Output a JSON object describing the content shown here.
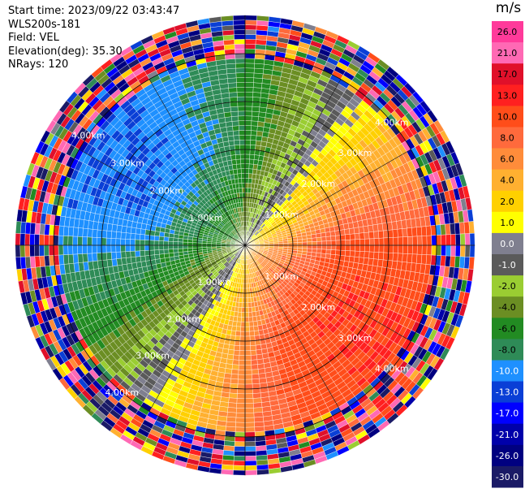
{
  "header": {
    "start_time": "Start time: 2023/09/22 03:43:47",
    "instrument": "WLS200s-181",
    "field": "Field: VEL",
    "elevation": "Elevation(deg): 35.30",
    "nrays": "NRays: 120"
  },
  "colorbar": {
    "unit": "m/s",
    "ticks": [
      "26.0",
      "21.0",
      "17.0",
      "13.0",
      "10.0",
      "8.0",
      "6.0",
      "4.0",
      "2.0",
      "1.0",
      "0.0",
      "-1.0",
      "-2.0",
      "-4.0",
      "-6.0",
      "-8.0",
      "-10.0",
      "-13.0",
      "-17.0",
      "-21.0",
      "-26.0",
      "-30.0"
    ],
    "colors": [
      "#ff3a9a",
      "#ff69b4",
      "#e0102a",
      "#ff2020",
      "#ff4d1a",
      "#ff6a3c",
      "#ff8c3a",
      "#ffb030",
      "#ffd000",
      "#ffff00",
      "#7f7f8f",
      "#5a5a5a",
      "#9acd32",
      "#6b8e23",
      "#228b22",
      "#2e8b57",
      "#1e90ff",
      "#0a3fd6",
      "#0000ff",
      "#0000aa",
      "#000080",
      "#1a1a66"
    ]
  },
  "chart_data": {
    "type": "heatmap",
    "projection": "polar-ppi",
    "nrays": 120,
    "range_rings_km": [
      1.0,
      2.0,
      3.0,
      4.0
    ],
    "ring_labels": [
      "1.00km",
      "2.00km",
      "3.00km",
      "4.00km"
    ],
    "max_range_km": 4.8,
    "value_range": [
      -30.0,
      26.0
    ],
    "grid": true,
    "pattern": {
      "positive_sector_deg": [
        40,
        150
      ],
      "negative_sector_deg": [
        220,
        330
      ],
      "peak_positive": 13.0,
      "peak_negative": -10.0,
      "noise_start_km": 3.9
    }
  }
}
